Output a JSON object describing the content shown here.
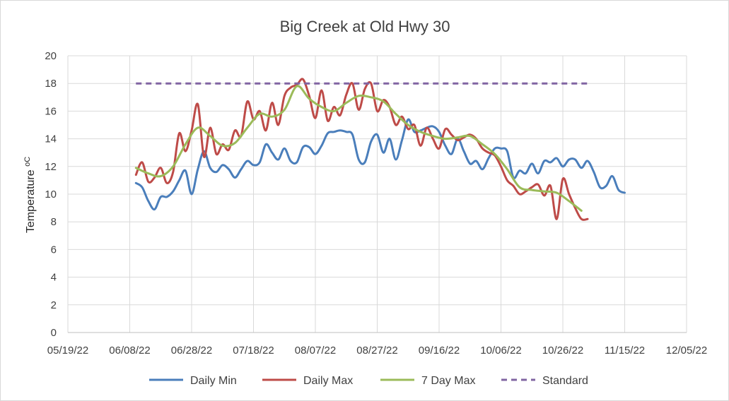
{
  "chart_data": {
    "type": "line",
    "title": "Big Creek at Old Hwy 30",
    "xlabel": "",
    "ylabel": "Temperature",
    "ylabel_unit": "oC",
    "ylim": [
      0,
      20
    ],
    "yticks": [
      0,
      2,
      4,
      6,
      8,
      10,
      12,
      14,
      16,
      18,
      20
    ],
    "xlim": [
      "05/19/22",
      "12/05/22"
    ],
    "xticks": [
      "05/19/22",
      "06/08/22",
      "06/28/22",
      "07/18/22",
      "08/07/22",
      "08/27/22",
      "09/16/22",
      "10/06/22",
      "10/26/22",
      "11/15/22",
      "12/05/22"
    ],
    "grid": true,
    "legend_position": "bottom",
    "series": [
      {
        "name": "Daily Min",
        "color": "#4a7ebb",
        "dash": "solid",
        "points": [
          [
            "06/10/22",
            10.8
          ],
          [
            "06/12/22",
            10.5
          ],
          [
            "06/14/22",
            9.5
          ],
          [
            "06/16/22",
            8.9
          ],
          [
            "06/18/22",
            9.8
          ],
          [
            "06/20/22",
            9.8
          ],
          [
            "06/22/22",
            10.2
          ],
          [
            "06/24/22",
            11.0
          ],
          [
            "06/26/22",
            11.7
          ],
          [
            "06/28/22",
            10.0
          ],
          [
            "06/30/22",
            11.8
          ],
          [
            "07/02/22",
            13.1
          ],
          [
            "07/04/22",
            11.9
          ],
          [
            "07/06/22",
            11.6
          ],
          [
            "07/08/22",
            12.1
          ],
          [
            "07/10/22",
            11.8
          ],
          [
            "07/12/22",
            11.2
          ],
          [
            "07/14/22",
            11.8
          ],
          [
            "07/16/22",
            12.4
          ],
          [
            "07/18/22",
            12.1
          ],
          [
            "07/20/22",
            12.3
          ],
          [
            "07/22/22",
            13.6
          ],
          [
            "07/24/22",
            13.0
          ],
          [
            "07/26/22",
            12.5
          ],
          [
            "07/28/22",
            13.3
          ],
          [
            "07/30/22",
            12.4
          ],
          [
            "08/01/22",
            12.3
          ],
          [
            "08/03/22",
            13.4
          ],
          [
            "08/05/22",
            13.4
          ],
          [
            "08/07/22",
            12.9
          ],
          [
            "08/09/22",
            13.5
          ],
          [
            "08/11/22",
            14.4
          ],
          [
            "08/13/22",
            14.5
          ],
          [
            "08/15/22",
            14.6
          ],
          [
            "08/17/22",
            14.5
          ],
          [
            "08/19/22",
            14.3
          ],
          [
            "08/21/22",
            12.5
          ],
          [
            "08/23/22",
            12.3
          ],
          [
            "08/25/22",
            13.8
          ],
          [
            "08/27/22",
            14.3
          ],
          [
            "08/29/22",
            13.0
          ],
          [
            "08/31/22",
            14.0
          ],
          [
            "09/02/22",
            12.5
          ],
          [
            "09/04/22",
            13.9
          ],
          [
            "09/06/22",
            15.4
          ],
          [
            "09/08/22",
            14.5
          ],
          [
            "09/10/22",
            14.6
          ],
          [
            "09/12/22",
            14.8
          ],
          [
            "09/14/22",
            14.9
          ],
          [
            "09/16/22",
            14.5
          ],
          [
            "09/18/22",
            13.5
          ],
          [
            "09/20/22",
            12.9
          ],
          [
            "09/22/22",
            14.0
          ],
          [
            "09/24/22",
            13.1
          ],
          [
            "09/26/22",
            12.2
          ],
          [
            "09/28/22",
            12.4
          ],
          [
            "09/30/22",
            11.8
          ],
          [
            "10/02/22",
            12.6
          ],
          [
            "10/04/22",
            13.3
          ],
          [
            "10/06/22",
            13.3
          ],
          [
            "10/08/22",
            13.1
          ],
          [
            "10/10/22",
            11.2
          ],
          [
            "10/12/22",
            11.7
          ],
          [
            "10/14/22",
            11.5
          ],
          [
            "10/16/22",
            12.2
          ],
          [
            "10/18/22",
            11.5
          ],
          [
            "10/20/22",
            12.4
          ],
          [
            "10/22/22",
            12.3
          ],
          [
            "10/24/22",
            12.6
          ],
          [
            "10/26/22",
            12.0
          ],
          [
            "10/28/22",
            12.5
          ],
          [
            "10/30/22",
            12.5
          ],
          [
            "11/01/22",
            11.9
          ],
          [
            "11/03/22",
            12.4
          ],
          [
            "11/05/22",
            11.6
          ],
          [
            "11/07/22",
            10.5
          ],
          [
            "11/09/22",
            10.6
          ],
          [
            "11/11/22",
            11.3
          ],
          [
            "11/13/22",
            10.3
          ],
          [
            "11/15/22",
            10.1
          ]
        ]
      },
      {
        "name": "Daily Max",
        "color": "#be4b48",
        "dash": "solid",
        "points": [
          [
            "06/10/22",
            11.4
          ],
          [
            "06/12/22",
            12.3
          ],
          [
            "06/14/22",
            10.9
          ],
          [
            "06/16/22",
            11.2
          ],
          [
            "06/18/22",
            11.9
          ],
          [
            "06/20/22",
            10.8
          ],
          [
            "06/22/22",
            11.6
          ],
          [
            "06/24/22",
            14.4
          ],
          [
            "06/26/22",
            13.1
          ],
          [
            "06/28/22",
            14.6
          ],
          [
            "06/30/22",
            16.5
          ],
          [
            "07/02/22",
            12.7
          ],
          [
            "07/04/22",
            14.8
          ],
          [
            "07/06/22",
            12.9
          ],
          [
            "07/08/22",
            13.6
          ],
          [
            "07/10/22",
            13.2
          ],
          [
            "07/12/22",
            14.6
          ],
          [
            "07/14/22",
            14.2
          ],
          [
            "07/16/22",
            16.7
          ],
          [
            "07/18/22",
            15.4
          ],
          [
            "07/20/22",
            16.0
          ],
          [
            "07/22/22",
            14.6
          ],
          [
            "07/24/22",
            16.6
          ],
          [
            "07/26/22",
            15.0
          ],
          [
            "07/28/22",
            17.1
          ],
          [
            "07/30/22",
            17.7
          ],
          [
            "08/01/22",
            17.9
          ],
          [
            "08/03/22",
            18.3
          ],
          [
            "08/05/22",
            17.1
          ],
          [
            "08/07/22",
            15.5
          ],
          [
            "08/09/22",
            17.5
          ],
          [
            "08/11/22",
            15.3
          ],
          [
            "08/13/22",
            16.3
          ],
          [
            "08/15/22",
            15.7
          ],
          [
            "08/17/22",
            17.2
          ],
          [
            "08/19/22",
            18.0
          ],
          [
            "08/21/22",
            16.1
          ],
          [
            "08/23/22",
            17.6
          ],
          [
            "08/25/22",
            18.0
          ],
          [
            "08/27/22",
            16.0
          ],
          [
            "08/29/22",
            16.8
          ],
          [
            "08/31/22",
            16.3
          ],
          [
            "09/02/22",
            15.0
          ],
          [
            "09/04/22",
            15.6
          ],
          [
            "09/06/22",
            14.7
          ],
          [
            "09/08/22",
            15.0
          ],
          [
            "09/10/22",
            13.5
          ],
          [
            "09/12/22",
            14.8
          ],
          [
            "09/14/22",
            14.0
          ],
          [
            "09/16/22",
            13.3
          ],
          [
            "09/18/22",
            14.7
          ],
          [
            "09/20/22",
            14.3
          ],
          [
            "09/22/22",
            13.9
          ],
          [
            "09/24/22",
            14.1
          ],
          [
            "09/26/22",
            14.3
          ],
          [
            "09/28/22",
            14.0
          ],
          [
            "09/30/22",
            13.3
          ],
          [
            "10/02/22",
            13.0
          ],
          [
            "10/04/22",
            12.8
          ],
          [
            "10/06/22",
            12.0
          ],
          [
            "10/08/22",
            11.0
          ],
          [
            "10/10/22",
            10.6
          ],
          [
            "10/12/22",
            10.0
          ],
          [
            "10/14/22",
            10.2
          ],
          [
            "10/16/22",
            10.5
          ],
          [
            "10/18/22",
            10.7
          ],
          [
            "10/20/22",
            9.9
          ],
          [
            "10/22/22",
            10.6
          ],
          [
            "10/24/22",
            8.2
          ],
          [
            "10/26/22",
            11.1
          ],
          [
            "10/28/22",
            10.0
          ],
          [
            "10/30/22",
            9.0
          ],
          [
            "11/01/22",
            8.2
          ],
          [
            "11/03/22",
            8.2
          ]
        ]
      },
      {
        "name": "7 Day Max",
        "color": "#9bbb59",
        "dash": "solid",
        "points": [
          [
            "06/10/22",
            11.9
          ],
          [
            "06/14/22",
            11.5
          ],
          [
            "06/18/22",
            11.3
          ],
          [
            "06/22/22",
            12.0
          ],
          [
            "06/26/22",
            13.6
          ],
          [
            "06/30/22",
            14.8
          ],
          [
            "07/04/22",
            14.2
          ],
          [
            "07/08/22",
            13.5
          ],
          [
            "07/12/22",
            13.7
          ],
          [
            "07/16/22",
            14.8
          ],
          [
            "07/20/22",
            15.8
          ],
          [
            "07/24/22",
            15.6
          ],
          [
            "07/28/22",
            16.1
          ],
          [
            "08/01/22",
            17.8
          ],
          [
            "08/05/22",
            16.9
          ],
          [
            "08/09/22",
            16.3
          ],
          [
            "08/13/22",
            16.0
          ],
          [
            "08/17/22",
            16.6
          ],
          [
            "08/21/22",
            17.1
          ],
          [
            "08/25/22",
            17.0
          ],
          [
            "08/29/22",
            16.7
          ],
          [
            "09/02/22",
            15.8
          ],
          [
            "09/06/22",
            15.0
          ],
          [
            "09/10/22",
            14.5
          ],
          [
            "09/14/22",
            14.2
          ],
          [
            "09/18/22",
            14.0
          ],
          [
            "09/22/22",
            14.1
          ],
          [
            "09/26/22",
            14.2
          ],
          [
            "09/30/22",
            13.6
          ],
          [
            "10/04/22",
            12.9
          ],
          [
            "10/08/22",
            11.8
          ],
          [
            "10/12/22",
            10.5
          ],
          [
            "10/16/22",
            10.3
          ],
          [
            "10/20/22",
            10.2
          ],
          [
            "10/24/22",
            10.1
          ],
          [
            "10/28/22",
            9.5
          ],
          [
            "11/01/22",
            8.8
          ]
        ]
      },
      {
        "name": "Standard",
        "color": "#8064a2",
        "dash": "dashed",
        "points": [
          [
            "06/10/22",
            18
          ],
          [
            "11/03/22",
            18
          ]
        ]
      }
    ]
  }
}
